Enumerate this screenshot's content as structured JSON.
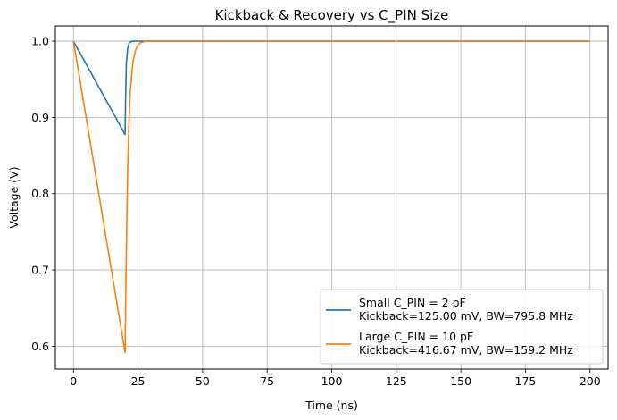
{
  "chart_data": {
    "type": "line",
    "title": "Kickback & Recovery vs C_PIN Size",
    "xlabel": "Time (ns)",
    "ylabel": "Voltage (V)",
    "xlim": [
      -7,
      207
    ],
    "ylim": [
      0.57,
      1.02
    ],
    "xticks": [
      0,
      25,
      50,
      75,
      100,
      125,
      150,
      175,
      200
    ],
    "yticks": [
      0.6,
      0.7,
      0.8,
      0.9,
      1.0
    ],
    "xtick_labels": [
      "0",
      "25",
      "50",
      "75",
      "100",
      "125",
      "150",
      "175",
      "200"
    ],
    "ytick_labels": [
      "0.6",
      "0.7",
      "0.8",
      "0.9",
      "1.0"
    ],
    "grid": true,
    "legend_position": "lower-right",
    "series": [
      {
        "name_line1": "Small C_PIN = 2 pF",
        "name_line2": "Kickback=125.00 mV, BW=795.8 MHz",
        "color": "#1f77b4",
        "x": [
          0,
          20,
          20.2,
          20.5,
          21,
          21.5,
          22,
          23,
          25,
          30,
          50,
          100,
          150,
          200
        ],
        "y": [
          1.0,
          0.8775,
          0.93,
          0.972,
          0.991,
          0.997,
          0.999,
          1.0,
          1.0,
          1.0,
          1.0,
          1.0,
          1.0,
          1.0
        ]
      },
      {
        "name_line1": "Large C_PIN = 10 pF",
        "name_line2": "Kickback=416.67 mV, BW=159.2 MHz",
        "color": "#ff7f0e",
        "x": [
          0,
          20,
          20.3,
          20.7,
          21,
          21.5,
          22,
          23,
          24,
          25,
          26,
          27,
          28,
          30,
          50,
          100,
          150,
          200
        ],
        "y": [
          1.0,
          0.5915,
          0.68,
          0.77,
          0.83,
          0.895,
          0.935,
          0.972,
          0.988,
          0.995,
          0.998,
          0.999,
          1.0,
          1.0,
          1.0,
          1.0,
          1.0,
          1.0
        ]
      }
    ]
  }
}
